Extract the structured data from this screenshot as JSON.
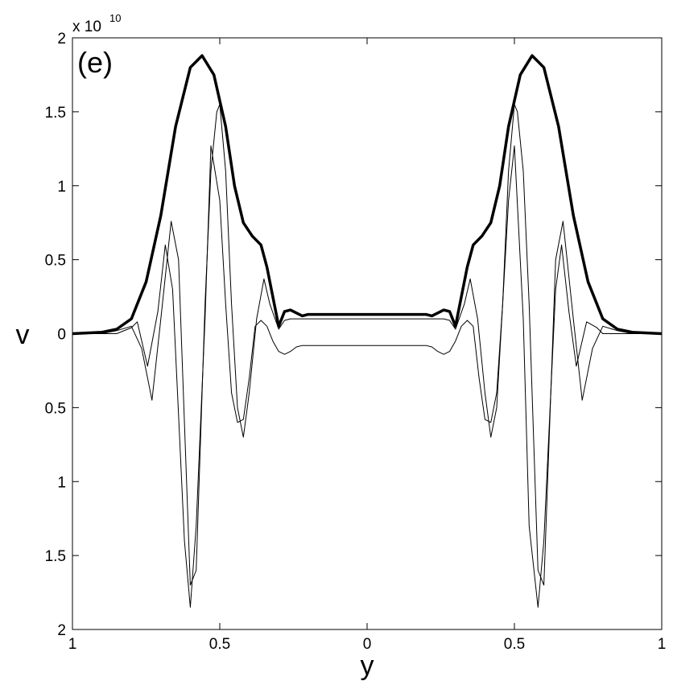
{
  "chart_data": {
    "type": "line",
    "panel_label": "(e)",
    "exponent_label": "x 10",
    "exponent_power": "10",
    "xlabel": "y",
    "ylabel": "v",
    "xlim": [
      -1,
      1
    ],
    "ylim": [
      -2,
      2
    ],
    "x_ticks": [
      -1,
      -0.5,
      0,
      0.5,
      1
    ],
    "x_tick_labels": [
      "1",
      "0.5",
      "0",
      "0.5",
      "1"
    ],
    "y_ticks": [
      2,
      1.5,
      1,
      0.5,
      0,
      -0.5,
      -1,
      -1.5,
      -2
    ],
    "y_tick_labels": [
      "2",
      "1.5",
      "1",
      "0.5",
      "0",
      "0.5",
      "1",
      "1.5",
      "2"
    ],
    "grid": false,
    "legend": "none",
    "series": [
      {
        "style": "thick",
        "x": [
          -1,
          -0.9,
          -0.85,
          -0.8,
          -0.75,
          -0.7,
          -0.65,
          -0.6,
          -0.56,
          -0.52,
          -0.48,
          -0.45,
          -0.42,
          -0.39,
          -0.36,
          -0.34,
          -0.32,
          -0.3,
          -0.28,
          -0.26,
          -0.24,
          -0.22,
          -0.2,
          -0.17,
          -0.1,
          0,
          0.1,
          0.17,
          0.2,
          0.22,
          0.24,
          0.26,
          0.28,
          0.3,
          0.32,
          0.34,
          0.36,
          0.39,
          0.42,
          0.45,
          0.48,
          0.52,
          0.56,
          0.6,
          0.65,
          0.7,
          0.75,
          0.8,
          0.85,
          0.9,
          1
        ],
        "y": [
          0,
          0.01,
          0.03,
          0.1,
          0.35,
          0.8,
          1.4,
          1.8,
          1.88,
          1.75,
          1.4,
          1.0,
          0.75,
          0.66,
          0.6,
          0.45,
          0.25,
          0.05,
          0.15,
          0.16,
          0.14,
          0.12,
          0.13,
          0.13,
          0.13,
          0.13,
          0.13,
          0.13,
          0.13,
          0.12,
          0.14,
          0.16,
          0.15,
          0.05,
          0.25,
          0.45,
          0.6,
          0.66,
          0.75,
          1.0,
          1.4,
          1.75,
          1.88,
          1.8,
          1.4,
          0.8,
          0.35,
          0.1,
          0.03,
          0.01,
          0
        ]
      },
      {
        "style": "thin",
        "x": [
          -1,
          -0.9,
          -0.85,
          -0.8,
          -0.765,
          -0.73,
          -0.7,
          -0.665,
          -0.64,
          -0.62,
          -0.6,
          -0.58,
          -0.55,
          -0.53,
          -0.51,
          -0.5,
          -0.48,
          -0.46,
          -0.44,
          -0.42,
          -0.4,
          -0.375,
          -0.35,
          -0.33,
          -0.3,
          -0.28,
          -0.26,
          -0.24,
          -0.22,
          -0.2,
          -0.15,
          -0.1,
          0,
          0.1,
          0.15,
          0.2,
          0.22,
          0.24,
          0.26,
          0.28,
          0.3,
          0.33,
          0.35,
          0.375,
          0.4,
          0.42,
          0.44,
          0.46,
          0.48,
          0.5,
          0.51,
          0.53,
          0.55,
          0.58,
          0.6,
          0.62,
          0.64,
          0.665,
          0.7,
          0.73,
          0.765,
          0.8,
          0.85,
          0.9,
          1
        ],
        "y": [
          0,
          0.0,
          0.02,
          0.05,
          -0.1,
          -0.45,
          0.1,
          0.76,
          0.5,
          -0.6,
          -1.7,
          -1.6,
          0.2,
          1.1,
          1.5,
          1.55,
          1.1,
          0.2,
          -0.5,
          -0.7,
          -0.4,
          0.1,
          0.37,
          0.2,
          0.03,
          0.09,
          0.1,
          0.1,
          0.1,
          0.1,
          0.1,
          0.1,
          0.1,
          0.1,
          0.1,
          0.1,
          0.1,
          0.1,
          0.1,
          0.09,
          0.03,
          0.2,
          0.37,
          0.1,
          -0.4,
          -0.7,
          -0.5,
          0.2,
          1.1,
          1.55,
          1.5,
          1.1,
          0.2,
          -1.6,
          -1.7,
          -0.6,
          0.5,
          0.76,
          0.1,
          -0.45,
          -0.1,
          0.05,
          0.02,
          0.0,
          0
        ]
      },
      {
        "style": "thin",
        "x": [
          -1,
          -0.9,
          -0.85,
          -0.8,
          -0.78,
          -0.745,
          -0.71,
          -0.685,
          -0.66,
          -0.64,
          -0.62,
          -0.6,
          -0.58,
          -0.55,
          -0.53,
          -0.5,
          -0.48,
          -0.46,
          -0.44,
          -0.42,
          -0.4,
          -0.38,
          -0.36,
          -0.34,
          -0.32,
          -0.3,
          -0.28,
          -0.26,
          -0.24,
          -0.22,
          -0.2,
          -0.15,
          -0.1,
          0,
          0.1,
          0.15,
          0.2,
          0.22,
          0.24,
          0.26,
          0.28,
          0.3,
          0.32,
          0.34,
          0.36,
          0.38,
          0.4,
          0.42,
          0.44,
          0.46,
          0.48,
          0.5,
          0.53,
          0.55,
          0.58,
          0.6,
          0.62,
          0.64,
          0.66,
          0.685,
          0.71,
          0.745,
          0.78,
          0.8,
          0.85,
          0.9,
          1
        ],
        "y": [
          0,
          0.0,
          0.0,
          0.04,
          0.08,
          -0.22,
          0.15,
          0.6,
          0.3,
          -0.55,
          -1.4,
          -1.85,
          -1.3,
          0.1,
          1.27,
          0.9,
          0.2,
          -0.4,
          -0.6,
          -0.58,
          -0.3,
          0.05,
          0.09,
          0.05,
          -0.05,
          -0.12,
          -0.14,
          -0.12,
          -0.09,
          -0.08,
          -0.08,
          -0.08,
          -0.08,
          -0.08,
          -0.08,
          -0.08,
          -0.08,
          -0.09,
          -0.12,
          -0.14,
          -0.12,
          -0.05,
          0.05,
          0.09,
          0.05,
          -0.3,
          -0.58,
          -0.6,
          -0.4,
          0.2,
          0.9,
          1.27,
          0.1,
          -1.3,
          -1.85,
          -1.4,
          -0.55,
          0.3,
          0.6,
          0.15,
          -0.22,
          0.08,
          0.04,
          0.0,
          0.0,
          0.0,
          0
        ]
      }
    ]
  }
}
